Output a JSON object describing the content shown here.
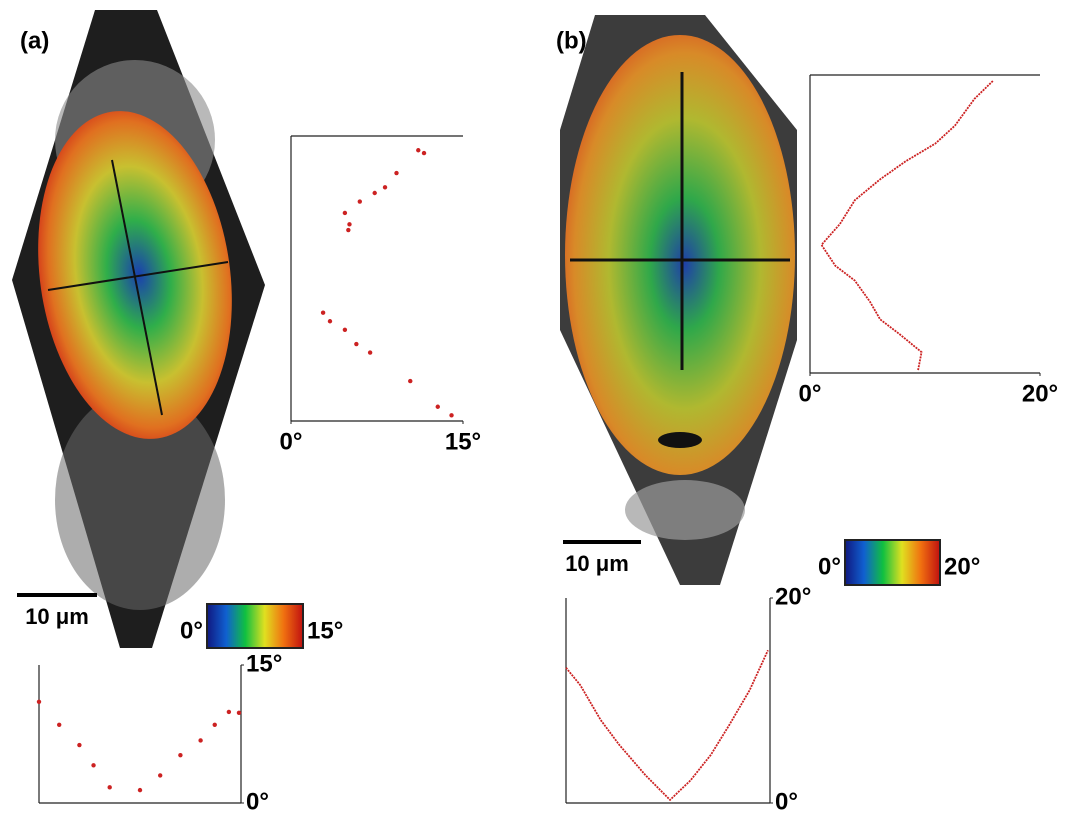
{
  "figure": {
    "panels": [
      {
        "label": "(a)",
        "scale_bar": "10 μm",
        "colorbar": {
          "min": "0°",
          "max": "15°"
        }
      },
      {
        "label": "(b)",
        "scale_bar": "10 μm",
        "colorbar": {
          "min": "0°",
          "max": "20°"
        }
      }
    ]
  },
  "chart_data": [
    {
      "type": "scatter",
      "color": "#cc2222",
      "x": [
        11.6,
        11.1,
        9.2,
        8.2,
        7.3,
        6.0,
        4.7,
        5.1,
        5.0,
        2.8,
        3.4,
        4.7,
        5.7,
        6.9,
        10.4,
        12.8,
        14.0
      ],
      "y": [
        94,
        95,
        87,
        82,
        80,
        77,
        73,
        69,
        67,
        38,
        35,
        32,
        27,
        24,
        14,
        5,
        2
      ],
      "xlim": [
        0,
        15
      ],
      "ylim": [
        0,
        100
      ],
      "xticks": [
        {
          "value": 0,
          "label": "0°"
        },
        {
          "value": 15,
          "label": "15°"
        }
      ]
    },
    {
      "type": "scatter",
      "color": "#cc2222",
      "x": [
        0,
        10,
        20,
        27,
        35,
        50,
        60,
        70,
        80,
        87,
        94,
        99
      ],
      "y": [
        11.0,
        8.5,
        6.3,
        4.1,
        1.7,
        1.4,
        3.0,
        5.2,
        6.8,
        8.5,
        9.9,
        9.8
      ],
      "xlim": [
        0,
        100
      ],
      "ylim": [
        0,
        15
      ],
      "yticks": [
        {
          "value": 0,
          "label": "0°"
        },
        {
          "value": 15,
          "label": "15°"
        }
      ]
    },
    {
      "type": "line",
      "color": "#cc2222",
      "x": [
        15.9,
        14.3,
        12.6,
        10.9,
        8.3,
        6.1,
        3.9,
        2.6,
        1.0,
        2.2,
        3.9,
        5.2,
        6.1,
        7.8,
        9.7,
        9.4
      ],
      "y": [
        98,
        92,
        83,
        77,
        71,
        65,
        58,
        50,
        43,
        36,
        31,
        24,
        18,
        13,
        7,
        1
      ],
      "xlim": [
        0,
        20
      ],
      "ylim": [
        0,
        100
      ],
      "xticks": [
        {
          "value": 0,
          "label": "0°"
        },
        {
          "value": 20,
          "label": "20°"
        }
      ]
    },
    {
      "type": "line",
      "color": "#cc2222",
      "x": [
        0,
        7,
        17,
        26,
        39,
        51,
        61,
        71,
        80,
        90,
        99
      ],
      "y": [
        13.2,
        11.5,
        8.1,
        5.7,
        2.7,
        0.3,
        2.2,
        4.7,
        7.6,
        11.0,
        14.9
      ],
      "xlim": [
        0,
        100
      ],
      "ylim": [
        0,
        20
      ],
      "yticks": [
        {
          "value": 0,
          "label": "0°"
        },
        {
          "value": 20,
          "label": "20°"
        }
      ]
    }
  ]
}
